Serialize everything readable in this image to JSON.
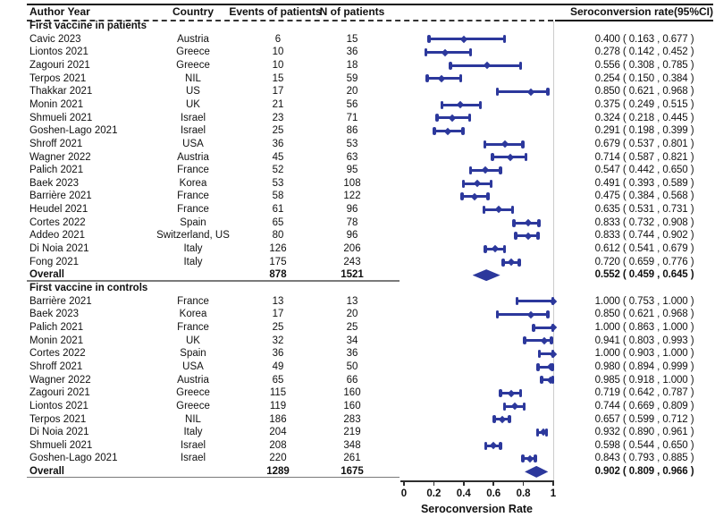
{
  "figure": {
    "columns": {
      "author": "Author Year",
      "country": "Country",
      "events": "Events of patients",
      "n": "N of patients",
      "rate": "Seroconversion rate(95%CI)"
    },
    "colors": {
      "marker": "#2c389c",
      "axis": "#2e2e2e",
      "refline": "#cccccc",
      "separator": "#7a7a7a",
      "text": "#111111"
    }
  },
  "chart_data": {
    "type": "forest",
    "xlabel": "Seroconversion Rate",
    "axis": {
      "min": 0,
      "max": 1,
      "tick_labels": [
        "0",
        "0.2",
        "0.4",
        "0.6",
        "0.8",
        "1"
      ],
      "tick_values": [
        0,
        0.2,
        0.4,
        0.6,
        0.8,
        1
      ],
      "refline": 1
    },
    "groups": [
      {
        "label": "First vaccine in patients",
        "studies": [
          {
            "author": "Cavic 2023",
            "country": "Austria",
            "events": 6,
            "n": 15,
            "rate": 0.4,
            "lo": 0.163,
            "hi": 0.677
          },
          {
            "author": "Liontos 2021",
            "country": "Greece",
            "events": 10,
            "n": 36,
            "rate": 0.278,
            "lo": 0.142,
            "hi": 0.452
          },
          {
            "author": "Zagouri 2021",
            "country": "Greece",
            "events": 10,
            "n": 18,
            "rate": 0.556,
            "lo": 0.308,
            "hi": 0.785
          },
          {
            "author": "Terpos 2021",
            "country": "NIL",
            "events": 15,
            "n": 59,
            "rate": 0.254,
            "lo": 0.15,
            "hi": 0.384
          },
          {
            "author": "Thakkar 2021",
            "country": "US",
            "events": 17,
            "n": 20,
            "rate": 0.85,
            "lo": 0.621,
            "hi": 0.968
          },
          {
            "author": "Monin 2021",
            "country": "UK",
            "events": 21,
            "n": 56,
            "rate": 0.375,
            "lo": 0.249,
            "hi": 0.515
          },
          {
            "author": "Shmueli 2021",
            "country": "Israel",
            "events": 23,
            "n": 71,
            "rate": 0.324,
            "lo": 0.218,
            "hi": 0.445
          },
          {
            "author": "Goshen-Lago 2021",
            "country": "Israel",
            "events": 25,
            "n": 86,
            "rate": 0.291,
            "lo": 0.198,
            "hi": 0.399
          },
          {
            "author": "Shroff 2021",
            "country": "USA",
            "events": 36,
            "n": 53,
            "rate": 0.679,
            "lo": 0.537,
            "hi": 0.801
          },
          {
            "author": "Wagner 2022",
            "country": "Austria",
            "events": 45,
            "n": 63,
            "rate": 0.714,
            "lo": 0.587,
            "hi": 0.821
          },
          {
            "author": "Palich 2021",
            "country": "France",
            "events": 52,
            "n": 95,
            "rate": 0.547,
            "lo": 0.442,
            "hi": 0.65
          },
          {
            "author": "Baek 2023",
            "country": "Korea",
            "events": 53,
            "n": 108,
            "rate": 0.491,
            "lo": 0.393,
            "hi": 0.589
          },
          {
            "author": "Barrière 2021",
            "country": "France",
            "events": 58,
            "n": 122,
            "rate": 0.475,
            "lo": 0.384,
            "hi": 0.568
          },
          {
            "author": "Heudel 2021",
            "country": "France",
            "events": 61,
            "n": 96,
            "rate": 0.635,
            "lo": 0.531,
            "hi": 0.731
          },
          {
            "author": "Cortes 2022",
            "country": "Spain",
            "events": 65,
            "n": 78,
            "rate": 0.833,
            "lo": 0.732,
            "hi": 0.908
          },
          {
            "author": "Addeo 2021",
            "country": "Switzerland, US",
            "events": 80,
            "n": 96,
            "rate": 0.833,
            "lo": 0.744,
            "hi": 0.902
          },
          {
            "author": "Di Noia 2021",
            "country": "Italy",
            "events": 126,
            "n": 206,
            "rate": 0.612,
            "lo": 0.541,
            "hi": 0.679
          },
          {
            "author": "Fong 2021",
            "country": "Italy",
            "events": 175,
            "n": 243,
            "rate": 0.72,
            "lo": 0.659,
            "hi": 0.776
          }
        ],
        "overall": {
          "label": "Overall",
          "events": 878,
          "n": 1521,
          "rate": 0.552,
          "lo": 0.459,
          "hi": 0.645
        }
      },
      {
        "label": "First vaccine in controls",
        "studies": [
          {
            "author": "Barrière 2021",
            "country": "France",
            "events": 13,
            "n": 13,
            "rate": 1.0,
            "lo": 0.753,
            "hi": 1.0
          },
          {
            "author": "Baek 2023",
            "country": "Korea",
            "events": 17,
            "n": 20,
            "rate": 0.85,
            "lo": 0.621,
            "hi": 0.968
          },
          {
            "author": "Palich 2021",
            "country": "France",
            "events": 25,
            "n": 25,
            "rate": 1.0,
            "lo": 0.863,
            "hi": 1.0
          },
          {
            "author": "Monin 2021",
            "country": "UK",
            "events": 32,
            "n": 34,
            "rate": 0.941,
            "lo": 0.803,
            "hi": 0.993
          },
          {
            "author": "Cortes 2022",
            "country": "Spain",
            "events": 36,
            "n": 36,
            "rate": 1.0,
            "lo": 0.903,
            "hi": 1.0
          },
          {
            "author": "Shroff 2021",
            "country": "USA",
            "events": 49,
            "n": 50,
            "rate": 0.98,
            "lo": 0.894,
            "hi": 0.999
          },
          {
            "author": "Wagner 2022",
            "country": "Austria",
            "events": 65,
            "n": 66,
            "rate": 0.985,
            "lo": 0.918,
            "hi": 1.0
          },
          {
            "author": "Zagouri 2021",
            "country": "Greece",
            "events": 115,
            "n": 160,
            "rate": 0.719,
            "lo": 0.642,
            "hi": 0.787
          },
          {
            "author": "Liontos 2021",
            "country": "Greece",
            "events": 119,
            "n": 160,
            "rate": 0.744,
            "lo": 0.669,
            "hi": 0.809
          },
          {
            "author": "Terpos 2021",
            "country": "NIL",
            "events": 186,
            "n": 283,
            "rate": 0.657,
            "lo": 0.599,
            "hi": 0.712
          },
          {
            "author": "Di Noia 2021",
            "country": "Italy",
            "events": 204,
            "n": 219,
            "rate": 0.932,
            "lo": 0.89,
            "hi": 0.961
          },
          {
            "author": "Shmueli 2021",
            "country": "Israel",
            "events": 208,
            "n": 348,
            "rate": 0.598,
            "lo": 0.544,
            "hi": 0.65
          },
          {
            "author": "Goshen-Lago 2021",
            "country": "Israel",
            "events": 220,
            "n": 261,
            "rate": 0.843,
            "lo": 0.793,
            "hi": 0.885
          }
        ],
        "overall": {
          "label": "Overall",
          "events": 1289,
          "n": 1675,
          "rate": 0.902,
          "lo": 0.809,
          "hi": 0.966
        }
      }
    ]
  }
}
